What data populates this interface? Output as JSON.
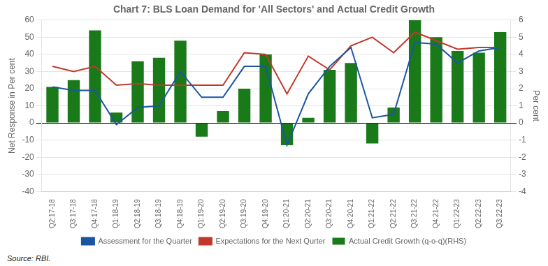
{
  "chart_data": {
    "type": "bar",
    "title": "Chart 7: BLS Loan Demand for 'All Sectors' and Actual Credit Growth",
    "ylabel": "Net Response in Per cent",
    "y2label": "Per cent",
    "annotations": [
      "Source: RBI."
    ],
    "categories": [
      "Q2:17-18",
      "Q3:17-18",
      "Q4:17-18",
      "Q1:18-19",
      "Q2:18-19",
      "Q3:18-19",
      "Q4:18-19",
      "Q1:19-20",
      "Q2:19-20",
      "Q3:19-20",
      "Q4:19-20",
      "Q1:20-21",
      "Q2:20-21",
      "Q3:20-21",
      "Q4:20-21",
      "Q1:21-22",
      "Q2:21-22",
      "Q3:21-22",
      "Q4:21-22",
      "Q1:22-23",
      "Q2:22-23",
      "Q3:22-23"
    ],
    "series": [
      {
        "name": "Actual Credit Growth (q-o-q)(RHS)",
        "type": "bar",
        "axis": "y2",
        "color": "#1a7a1a",
        "values": [
          2.1,
          2.5,
          5.4,
          0.6,
          3.6,
          3.8,
          4.8,
          -0.8,
          0.7,
          2.0,
          4.0,
          -1.3,
          0.3,
          3.1,
          3.5,
          -1.2,
          0.9,
          6.0,
          5.0,
          4.2,
          4.1,
          5.3
        ]
      },
      {
        "name": "Assessment for the Quarter",
        "type": "line",
        "color": "#1a56a0",
        "values": [
          21,
          19,
          19,
          -1,
          9,
          10,
          30,
          15,
          15,
          33,
          33,
          -13,
          17,
          33,
          44,
          3,
          5,
          47,
          46,
          35,
          42,
          44
        ]
      },
      {
        "name": "Expectations for the Next Qurter",
        "type": "line",
        "color": "#c0392b",
        "values": [
          33,
          30,
          33,
          22,
          23,
          22,
          22,
          22,
          22,
          41,
          40,
          17,
          39,
          31,
          45,
          50,
          41,
          53,
          48,
          43,
          44,
          44
        ]
      }
    ],
    "ylim": [
      -40,
      60
    ],
    "yticks": [
      -40,
      -30,
      -20,
      -10,
      0,
      10,
      20,
      30,
      40,
      50,
      60
    ],
    "y2lim": [
      -4,
      6
    ],
    "y2ticks": [
      -4,
      -3,
      -2,
      -1,
      0,
      1,
      2,
      3,
      4,
      5,
      6
    ],
    "grid": true,
    "legend": "bottom"
  }
}
